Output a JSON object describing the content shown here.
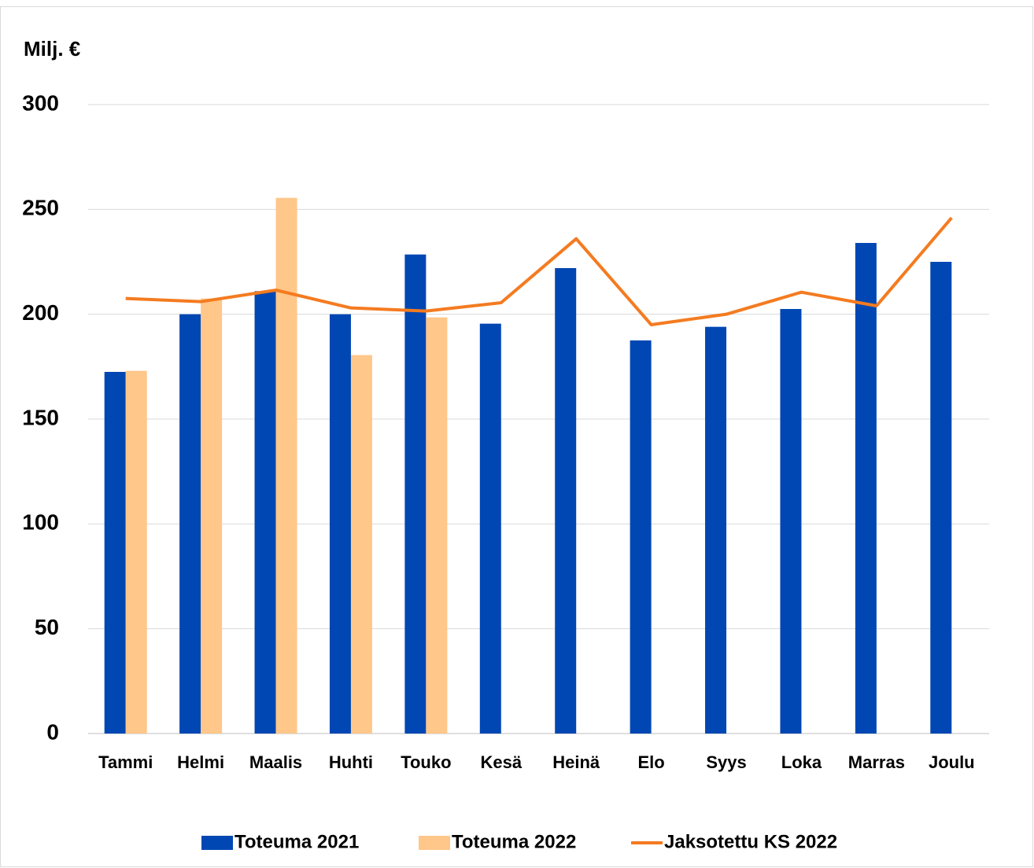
{
  "chart_data": {
    "type": "bar_line",
    "y_label": "Milj. €",
    "categories": [
      "Tammi",
      "Helmi",
      "Maalis",
      "Huhti",
      "Touko",
      "Kesä",
      "Heinä",
      "Elo",
      "Syys",
      "Loka",
      "Marras",
      "Joulu"
    ],
    "series": [
      {
        "name": "Toteuma 2021",
        "type": "bar",
        "color": "#0047b3",
        "values": [
          172.5,
          200,
          211,
          200,
          228.5,
          195.5,
          222,
          187.5,
          194,
          202.5,
          234,
          225
        ]
      },
      {
        "name": "Toteuma 2022",
        "type": "bar",
        "color": "#ffc78a",
        "values": [
          173,
          207.5,
          255.5,
          180.5,
          198.5,
          null,
          null,
          null,
          null,
          null,
          null,
          null
        ]
      },
      {
        "name": "Jaksotettu KS 2022",
        "type": "line",
        "color": "#f47b20",
        "values": [
          207.5,
          206,
          211.5,
          203,
          201.5,
          205.5,
          236,
          195,
          200,
          210.5,
          204,
          246
        ]
      }
    ],
    "ylim": [
      0,
      300
    ],
    "yticks": [
      0,
      50,
      100,
      150,
      200,
      250,
      300
    ],
    "grid": true
  }
}
